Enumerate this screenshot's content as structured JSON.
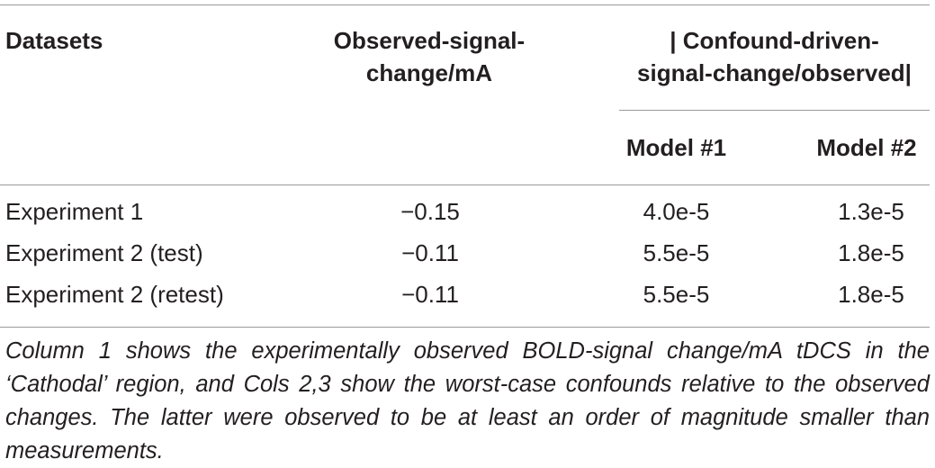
{
  "table": {
    "headers": {
      "datasets": "Datasets",
      "observed_line1": "Observed-signal-",
      "observed_line2": "change/mA",
      "confound_line1": "| Confound-driven-",
      "confound_line2": "signal-change/observed|",
      "model1": "Model #1",
      "model2": "Model #2"
    },
    "rows": [
      {
        "name": "Experiment 1",
        "observed": "−0.15",
        "model1": "4.0e-5",
        "model2": "1.3e-5"
      },
      {
        "name": "Experiment 2 (test)",
        "observed": "−0.11",
        "model1": "5.5e-5",
        "model2": "1.8e-5"
      },
      {
        "name": "Experiment 2 (retest)",
        "observed": "−0.11",
        "model1": "5.5e-5",
        "model2": "1.8e-5"
      }
    ],
    "caption": "Column 1 shows the experimentally observed BOLD-signal change/mA tDCS in the ‘Cathodal’ region, and Cols 2,3 show the worst-case confounds relative to the observed changes. The latter were observed to be at least an order of magnitude smaller than measurements."
  }
}
